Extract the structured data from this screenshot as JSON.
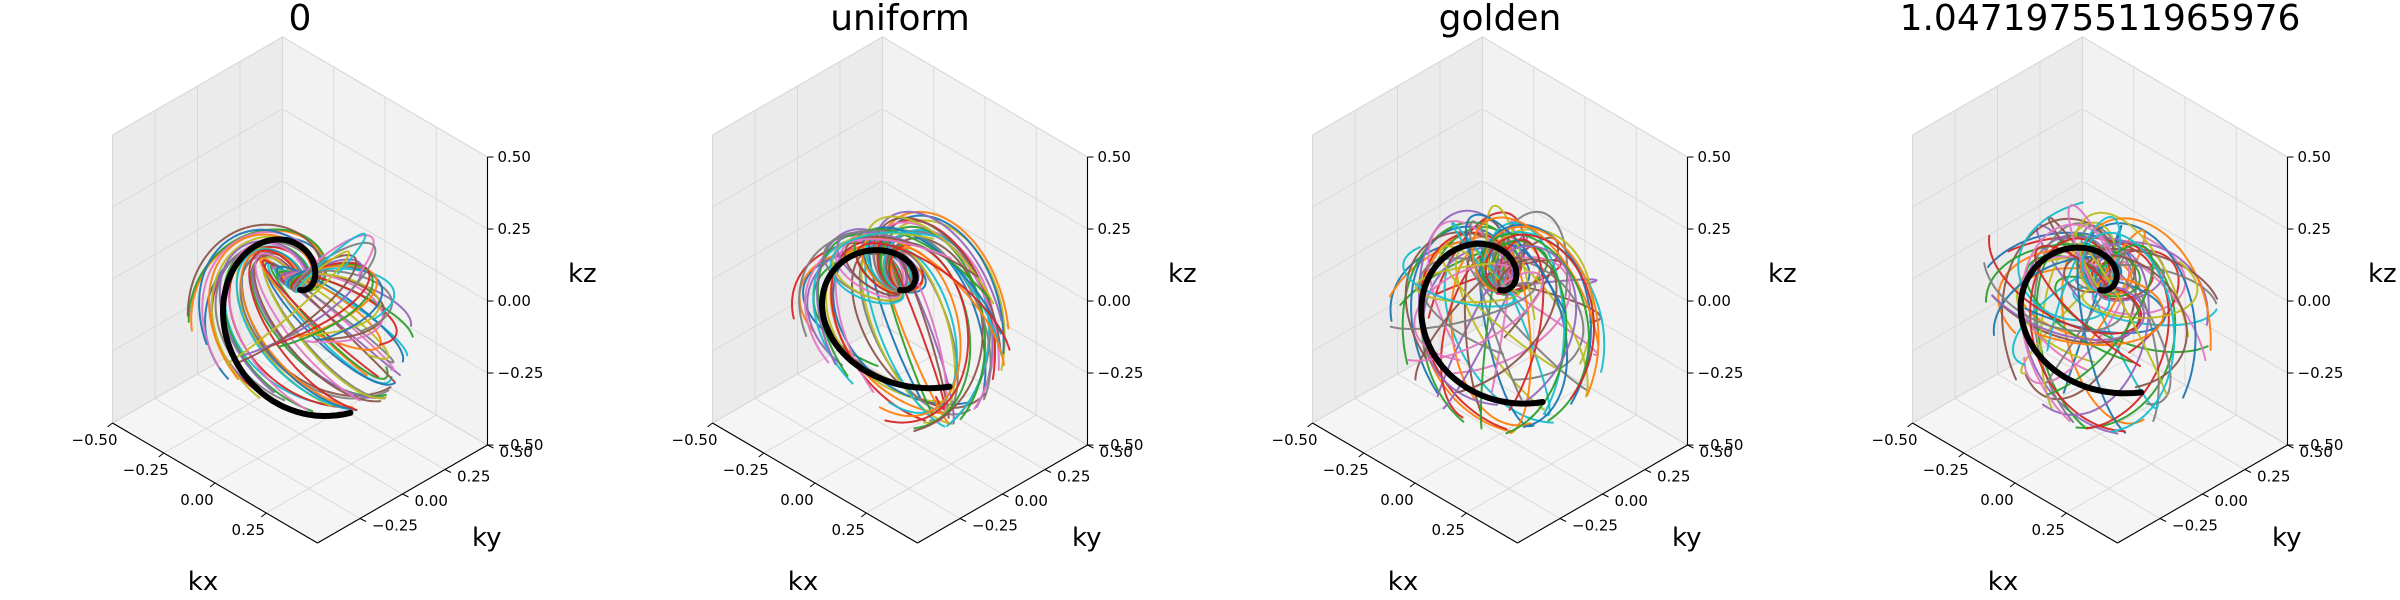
{
  "figure": {
    "type": "3d-line-subplots",
    "panel_count": 4
  },
  "colors": {
    "palette": [
      "#1f77b4",
      "#ff7f0e",
      "#2ca02c",
      "#d62728",
      "#9467bd",
      "#8c564b",
      "#e377c2",
      "#7f7f7f",
      "#bcbd22",
      "#17becf"
    ],
    "highlight": "#000000",
    "pane_left": "#ebebeb",
    "pane_right": "#f2f2f2",
    "pane_floor": "#f5f5f5",
    "grid": "#d9d9d9"
  },
  "chart_data": [
    {
      "type": "line3d",
      "title": "0",
      "xlabel": "kx",
      "ylabel": "ky",
      "zlabel": "kz",
      "xlim": [
        -0.5,
        0.5
      ],
      "ylim": [
        -0.5,
        0.5
      ],
      "zlim": [
        -0.5,
        0.5
      ],
      "xticks": [
        "−0.50",
        "−0.25",
        "0.00",
        "0.25"
      ],
      "yticks": [
        "−0.25",
        "0.00",
        "0.25",
        "0.50"
      ],
      "zticks": [
        "−0.50",
        "−0.25",
        "0.00",
        "0.25",
        "0.50"
      ],
      "grid": true,
      "series_count": 60,
      "highlight_series_index": 0
    },
    {
      "type": "line3d",
      "title": "uniform",
      "xlabel": "kx",
      "ylabel": "ky",
      "zlabel": "kz",
      "xlim": [
        -0.5,
        0.5
      ],
      "ylim": [
        -0.5,
        0.5
      ],
      "zlim": [
        -0.5,
        0.5
      ],
      "xticks": [
        "−0.50",
        "−0.25",
        "0.00",
        "0.25"
      ],
      "yticks": [
        "−0.25",
        "0.00",
        "0.25",
        "0.50"
      ],
      "zticks": [
        "−0.50",
        "−0.25",
        "0.00",
        "0.25",
        "0.50"
      ],
      "grid": true,
      "series_count": 60,
      "highlight_series_index": 0
    },
    {
      "type": "line3d",
      "title": "golden",
      "xlabel": "kx",
      "ylabel": "ky",
      "zlabel": "kz",
      "xlim": [
        -0.5,
        0.5
      ],
      "ylim": [
        -0.5,
        0.5
      ],
      "zlim": [
        -0.5,
        0.5
      ],
      "xticks": [
        "−0.50",
        "−0.25",
        "0.00",
        "0.25"
      ],
      "yticks": [
        "−0.25",
        "0.00",
        "0.25",
        "0.50"
      ],
      "zticks": [
        "−0.50",
        "−0.25",
        "0.00",
        "0.25",
        "0.50"
      ],
      "grid": true,
      "series_count": 60,
      "highlight_series_index": 0
    },
    {
      "type": "line3d",
      "title": "1.0471975511965976",
      "xlabel": "kx",
      "ylabel": "ky",
      "zlabel": "kz",
      "xlim": [
        -0.5,
        0.5
      ],
      "ylim": [
        -0.5,
        0.5
      ],
      "zlim": [
        -0.5,
        0.5
      ],
      "xticks": [
        "−0.50",
        "−0.25",
        "0.00",
        "0.25"
      ],
      "yticks": [
        "−0.25",
        "0.00",
        "0.25",
        "0.50"
      ],
      "zticks": [
        "−0.50",
        "−0.25",
        "0.00",
        "0.25",
        "0.50"
      ],
      "grid": true,
      "series_count": 60,
      "highlight_series_index": 0
    }
  ]
}
